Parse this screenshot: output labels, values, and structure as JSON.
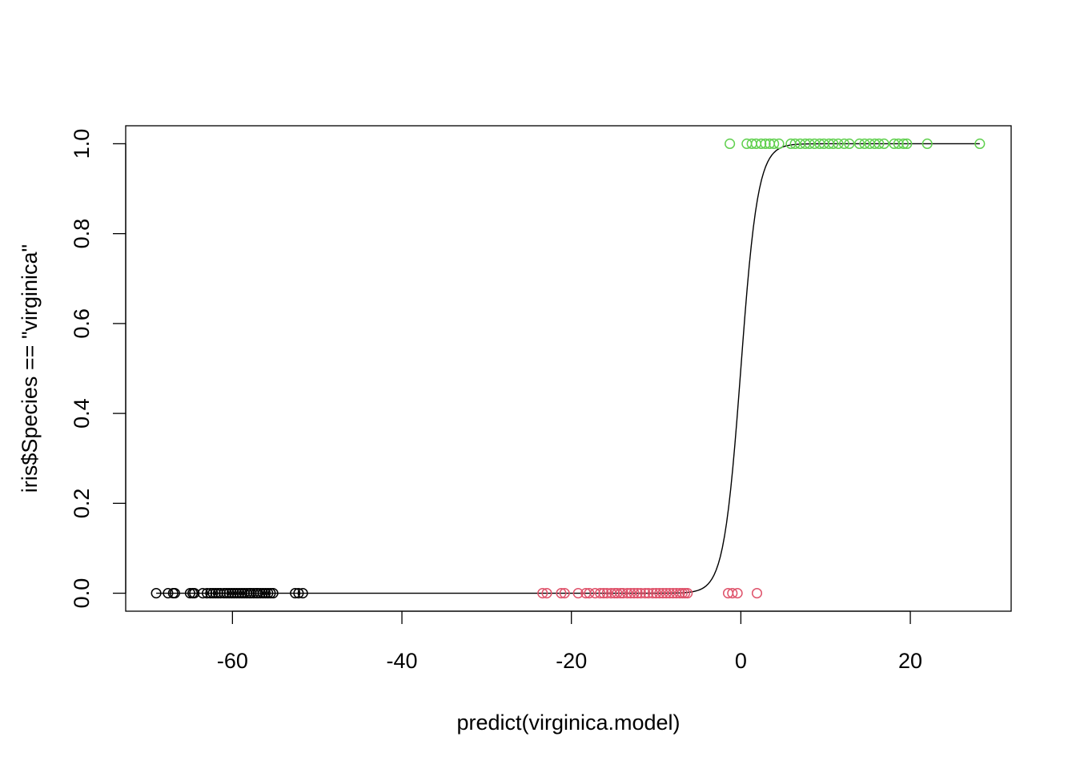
{
  "chart_data": {
    "type": "scatter",
    "title": "",
    "xlabel": "predict(virginica.model)",
    "ylabel": "iris$Species == \"virginica\"",
    "xlim": [
      -72.6,
      31.9
    ],
    "ylim": [
      -0.04,
      1.04
    ],
    "x_ticks": [
      -60,
      -40,
      -20,
      0,
      20
    ],
    "x_tick_labels": [
      "-60",
      "-40",
      "-20",
      "0",
      "20"
    ],
    "y_ticks": [
      0.0,
      0.2,
      0.4,
      0.6,
      0.8,
      1.0
    ],
    "y_tick_labels": [
      "0.0",
      "0.2",
      "0.4",
      "0.6",
      "0.8",
      "1.0"
    ],
    "grid": false,
    "legend": "none",
    "series": [
      {
        "color": "#000000",
        "marker": "open-circle",
        "y": 0,
        "x": [
          -69.0,
          -67.6,
          -67.0,
          -66.8,
          -65.0,
          -64.7,
          -64.5,
          -63.5,
          -63.0,
          -62.6,
          -62.3,
          -62.0,
          -61.7,
          -61.4,
          -61.0,
          -60.7,
          -60.4,
          -60.1,
          -59.8,
          -59.5,
          -59.2,
          -58.9,
          -58.6,
          -58.3,
          -58.0,
          -57.8,
          -57.5,
          -57.2,
          -57.0,
          -56.7,
          -56.4,
          -56.1,
          -55.8,
          -55.5,
          -55.2,
          -52.6,
          -52.2,
          -51.7
        ]
      },
      {
        "color": "#DF536B",
        "marker": "open-circle",
        "y": 0,
        "x": [
          -23.4,
          -22.9,
          -21.2,
          -20.8,
          -19.2,
          -18.3,
          -17.9,
          -17.2,
          -16.6,
          -16.2,
          -15.8,
          -15.3,
          -14.9,
          -14.6,
          -14.2,
          -13.9,
          -13.4,
          -13.0,
          -12.6,
          -12.2,
          -11.8,
          -11.3,
          -10.9,
          -10.4,
          -10.0,
          -9.6,
          -9.2,
          -8.8,
          -8.4,
          -8.0,
          -7.6,
          -7.2,
          -6.9,
          -6.6,
          -6.3,
          -1.5,
          -1.0,
          -0.4,
          1.9
        ]
      },
      {
        "color": "#61D04F",
        "marker": "open-circle",
        "y": 1,
        "x": [
          -1.3,
          0.7,
          1.3,
          1.8,
          2.4,
          2.9,
          3.4,
          3.9,
          4.5,
          5.9,
          6.4,
          7.0,
          7.6,
          8.1,
          8.7,
          9.3,
          9.8,
          10.4,
          10.9,
          11.5,
          12.2,
          12.8,
          14.0,
          14.6,
          15.2,
          15.8,
          16.3,
          16.9,
          18.1,
          18.6,
          19.2,
          19.6,
          22.0,
          28.2
        ]
      }
    ],
    "fitted_curve": {
      "color": "#000000",
      "type": "logistic",
      "x_range": [
        -69.0,
        28.2
      ]
    }
  }
}
